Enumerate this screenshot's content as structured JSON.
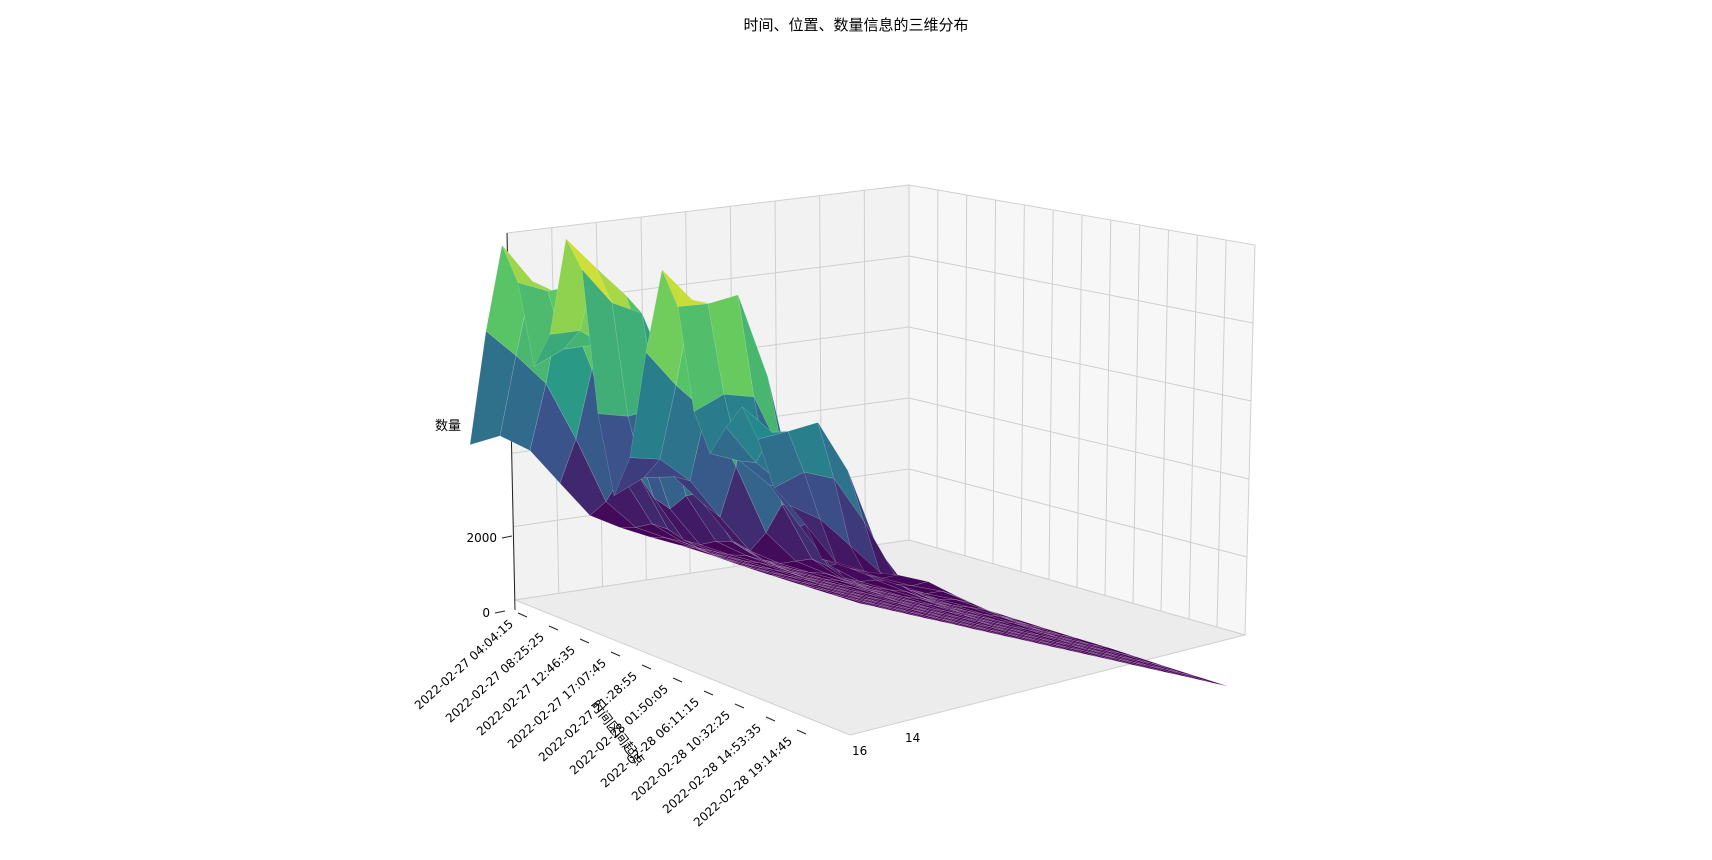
{
  "chart_data": {
    "type": "surface3d",
    "title": "时间、位置、数量信息的三维分布",
    "xlabel": "时间区间起点",
    "ylabel": "",
    "zlabel": "数量",
    "x_tick_labels": [
      "2022-02-27 04:04:15",
      "2022-02-27 08:25:25",
      "2022-02-27 12:46:35",
      "2022-02-27 17:07:45",
      "2022-02-27 21:28:55",
      "2022-02-28 01:50:05",
      "2022-02-28 06:11:15",
      "2022-02-28 10:32:25",
      "2022-02-28 14:53:35",
      "2022-02-28 19:14:45"
    ],
    "y_tick_labels": [
      "16",
      "14"
    ],
    "z_tick_labels": [
      "0",
      "2000"
    ],
    "colormap": "viridis",
    "colormap_stops": [
      "#440154",
      "#3b528b",
      "#21918c",
      "#5ec962",
      "#fde725"
    ]
  }
}
